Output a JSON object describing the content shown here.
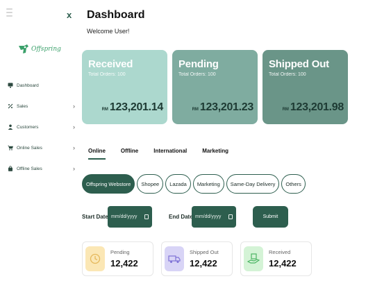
{
  "sidebar": {
    "close_glyph": "x",
    "logo_text": "Offspring",
    "items": [
      {
        "label": "Dashboard",
        "icon": "monitor-icon",
        "chevron": ""
      },
      {
        "label": "Sales",
        "icon": "percent-icon",
        "chevron": "›"
      },
      {
        "label": "Customers",
        "icon": "user-icon",
        "chevron": "›"
      },
      {
        "label": "Online Sales",
        "icon": "cart-icon",
        "chevron": "›"
      },
      {
        "label": "Offline Sales",
        "icon": "bag-icon",
        "chevron": "›"
      }
    ]
  },
  "header": {
    "title": "Dashboard",
    "welcome": "Welcome User!"
  },
  "cards": [
    {
      "title": "Received",
      "sub": "Total Orders: 100",
      "currency": "RM",
      "amount": "123,201.14"
    },
    {
      "title": "Pending",
      "sub": "Total Orders: 100",
      "currency": "RM",
      "amount": "123,201.23"
    },
    {
      "title": "Shipped Out",
      "sub": "Total Orders: 100",
      "currency": "RM",
      "amount": "123,201.98"
    }
  ],
  "tabs": [
    "Online",
    "Offline",
    "International",
    "Marketing"
  ],
  "active_tab": "Online",
  "chips": [
    "Offspring Webstore",
    "Shopee",
    "Lazada",
    "Marketing",
    "Same-Day Delivery",
    "Others"
  ],
  "active_chip": "Offspring Webstore",
  "filters": {
    "start_label": "Start Date",
    "start_placeholder": "mm/dd/yyyy",
    "end_label": "End Date",
    "end_placeholder": "mm/dd/yyyy",
    "submit_label": "Submit"
  },
  "mini_stats": [
    {
      "label": "Pending",
      "value": "12,422",
      "icon": "clock-icon",
      "tile_color": "#fbe7b5"
    },
    {
      "label": "Shipped Out",
      "value": "12,422",
      "icon": "truck-icon",
      "tile_color": "#d8d4f6"
    },
    {
      "label": "Received",
      "value": "12,422",
      "icon": "package-hand-icon",
      "tile_color": "#d4f3d6"
    }
  ],
  "colors": {
    "accent": "#2d5e4e",
    "card_received": "#acd8ce",
    "card_pending": "#7faca0",
    "card_shipped": "#6a9588"
  }
}
